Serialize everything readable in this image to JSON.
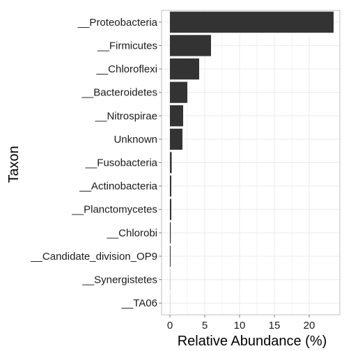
{
  "chart_data": {
    "type": "bar",
    "orientation": "horizontal",
    "title": "",
    "xlabel": "Relative Abundance (%)",
    "ylabel": "Taxon",
    "categories": [
      "__Proteobacteria",
      "__Firmicutes",
      "__Chloroflexi",
      "__Bacteroidetes",
      "__Nitrospirae",
      "Unknown",
      "__Fusobacteria",
      "__Actinobacteria",
      "__Planctomycetes",
      "__Chlorobi",
      "__Candidate_division_OP9",
      "__Synergistetes",
      "__TA06"
    ],
    "values": [
      23.5,
      5.9,
      4.2,
      2.5,
      1.9,
      1.8,
      0.25,
      0.2,
      0.2,
      0.12,
      0.1,
      0.02,
      0.01
    ],
    "xlim": [
      -1.2,
      24.4
    ],
    "xticks": [
      "0",
      "5",
      "10",
      "15",
      "20"
    ],
    "grid": true,
    "bar_color": "#333333",
    "grid_color": "#ebebeb",
    "panel_border_color": "#bfbfbf"
  }
}
